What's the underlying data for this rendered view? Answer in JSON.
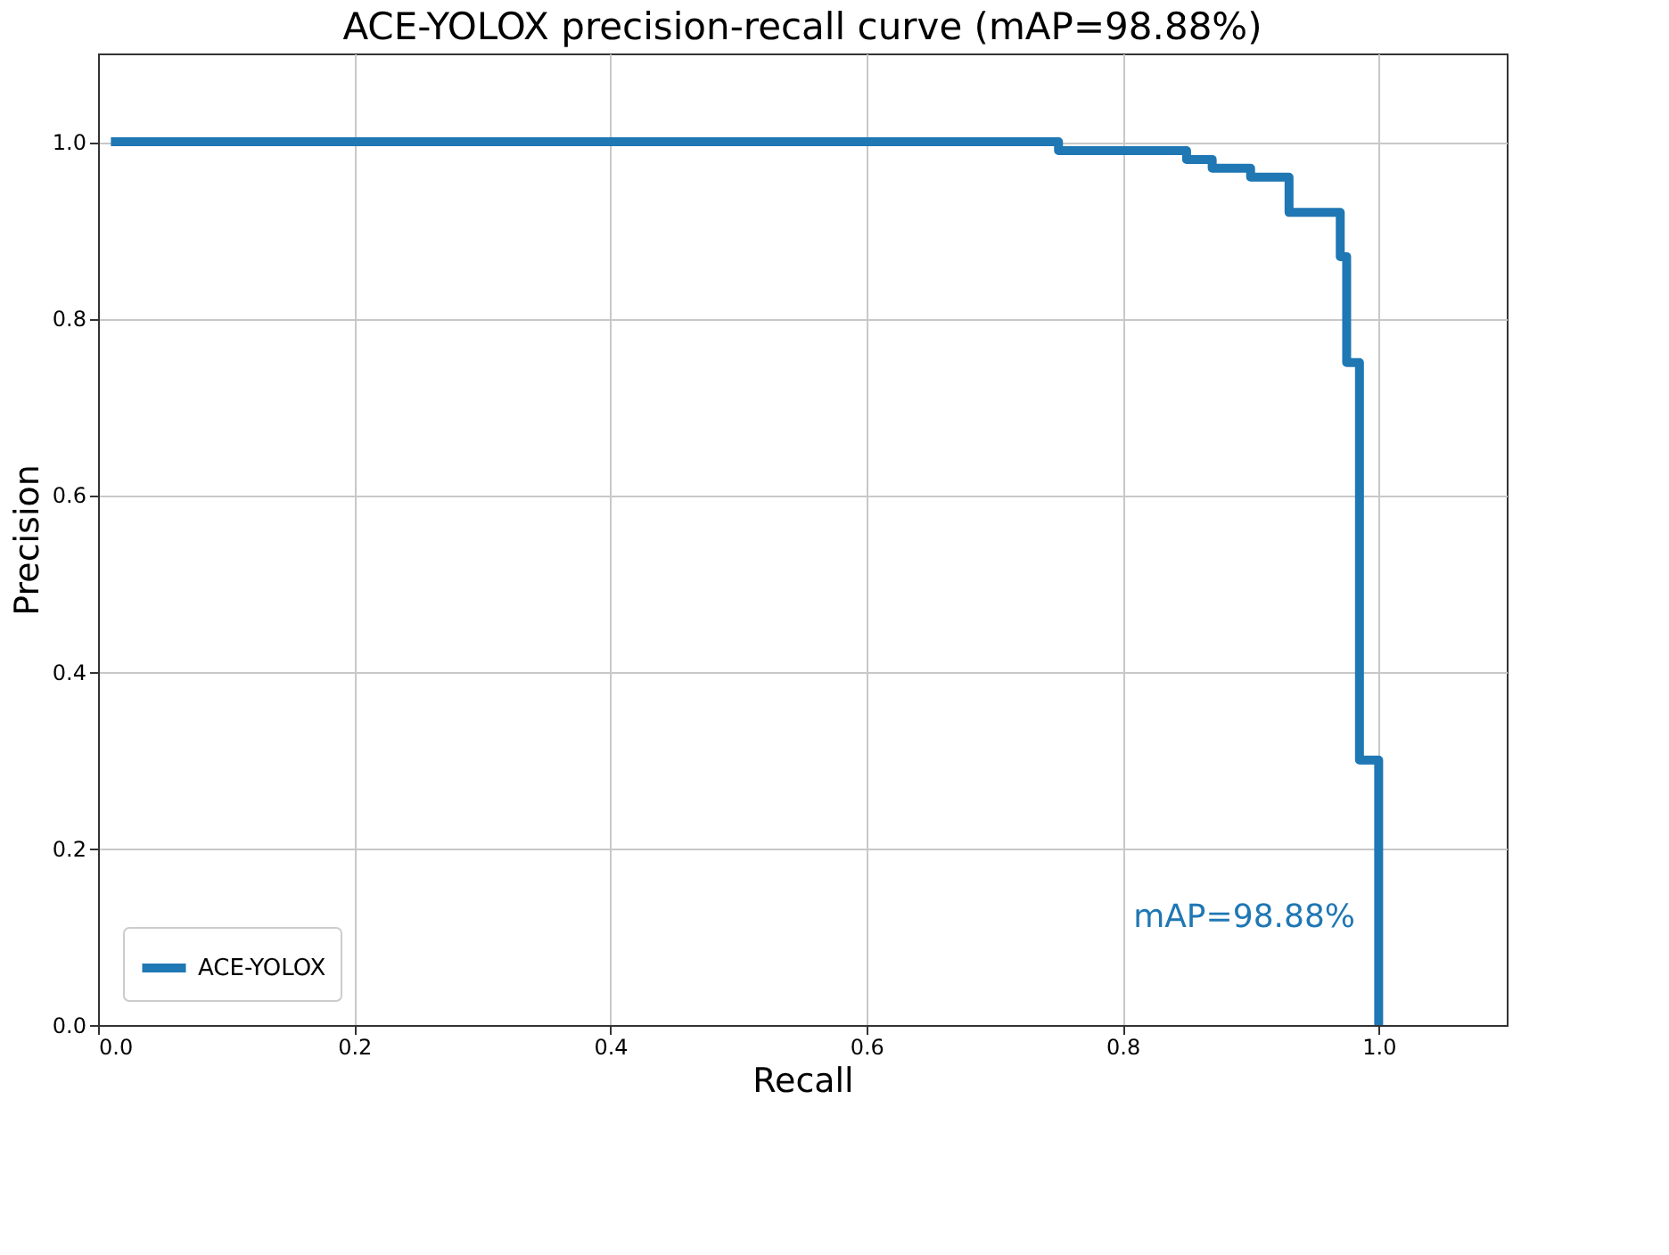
{
  "chart_data": {
    "type": "step",
    "title": "ACE-YOLOX precision-recall curve (mAP=98.88%)",
    "xlabel": "Recall",
    "ylabel": "Precision",
    "series": [
      {
        "name": "ACE-YOLOX",
        "color": "#1f77b4",
        "x": [
          0.01,
          0.75,
          0.85,
          0.87,
          0.9,
          0.93,
          0.97,
          0.975,
          0.985,
          1.0
        ],
        "values": [
          1.0,
          0.99,
          0.98,
          0.97,
          0.96,
          0.92,
          0.87,
          0.75,
          0.3,
          0.0
        ]
      }
    ],
    "xlim": [
      0,
      1.1
    ],
    "ylim": [
      0,
      1.1
    ],
    "xticks": [
      {
        "value": 0,
        "label": "0.0"
      },
      0.2,
      0.4,
      0.6,
      0.8,
      {
        "value": 1,
        "label": "1.0"
      }
    ],
    "yticks": [
      {
        "value": 0,
        "label": "0.0"
      },
      0.2,
      0.4,
      0.6,
      0.8,
      {
        "value": 1,
        "label": "1.0"
      }
    ],
    "grid": true,
    "legend": "bottom left",
    "line_style": "solid",
    "marker": "none",
    "annotations": [
      "mAP=98.88%"
    ]
  }
}
